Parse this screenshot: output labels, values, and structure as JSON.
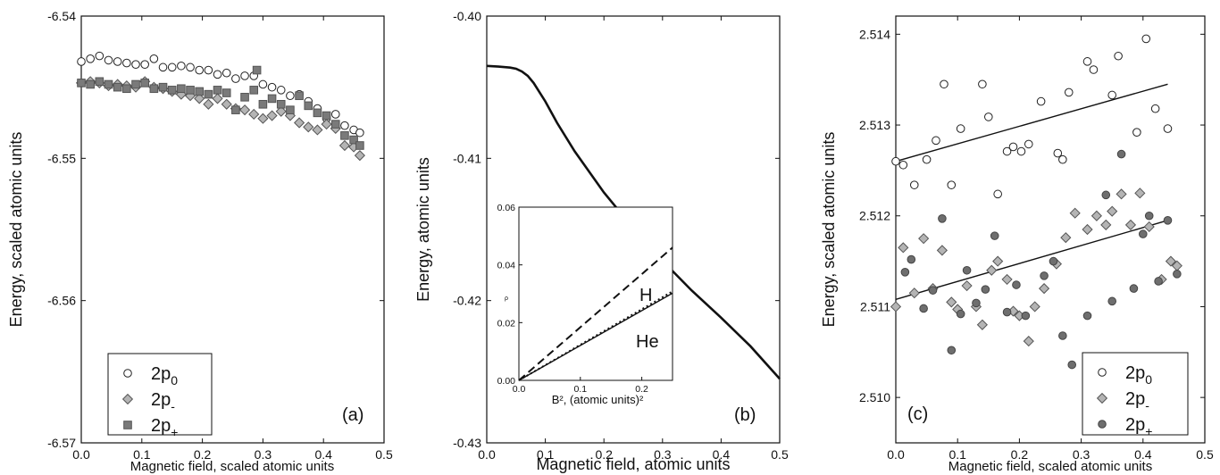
{
  "chart_data": [
    {
      "type": "scatter",
      "panel_label": "(a)",
      "xlabel": "Magnetic field, scaled atomic units",
      "ylabel": "Energy, scaled atomic units",
      "xlim": [
        0.0,
        0.5
      ],
      "ylim": [
        -6.57,
        -6.54
      ],
      "x_ticks": [
        "0.0",
        "0.1",
        "0.2",
        "0.3",
        "0.4",
        "0.5"
      ],
      "y_ticks": [
        "-6.54",
        "-6.55",
        "-6.56",
        "-6.57"
      ],
      "legend_position": "bottom-left",
      "series": [
        {
          "legend": {
            "base": "2p",
            "sub": "0"
          },
          "marker": "open-circle",
          "points": [
            [
              0.0,
              -6.5432
            ],
            [
              0.015,
              -6.543
            ],
            [
              0.03,
              -6.5428
            ],
            [
              0.045,
              -6.5431
            ],
            [
              0.06,
              -6.5432
            ],
            [
              0.075,
              -6.5433
            ],
            [
              0.09,
              -6.5434
            ],
            [
              0.105,
              -6.5434
            ],
            [
              0.12,
              -6.543
            ],
            [
              0.135,
              -6.5436
            ],
            [
              0.15,
              -6.5436
            ],
            [
              0.165,
              -6.5435
            ],
            [
              0.18,
              -6.5436
            ],
            [
              0.195,
              -6.5438
            ],
            [
              0.21,
              -6.5438
            ],
            [
              0.225,
              -6.5441
            ],
            [
              0.24,
              -6.544
            ],
            [
              0.255,
              -6.5444
            ],
            [
              0.27,
              -6.5442
            ],
            [
              0.285,
              -6.5442
            ],
            [
              0.3,
              -6.5448
            ],
            [
              0.315,
              -6.545
            ],
            [
              0.33,
              -6.5452
            ],
            [
              0.345,
              -6.5456
            ],
            [
              0.36,
              -6.5455
            ],
            [
              0.375,
              -6.546
            ],
            [
              0.39,
              -6.5465
            ],
            [
              0.405,
              -6.5472
            ],
            [
              0.42,
              -6.5469
            ],
            [
              0.435,
              -6.5477
            ],
            [
              0.45,
              -6.548
            ],
            [
              0.46,
              -6.5482
            ]
          ]
        },
        {
          "legend": {
            "base": "2p",
            "sub": "-"
          },
          "marker": "gray-diamond",
          "points": [
            [
              0.0,
              -6.5447
            ],
            [
              0.015,
              -6.5446
            ],
            [
              0.03,
              -6.5447
            ],
            [
              0.045,
              -6.5449
            ],
            [
              0.06,
              -6.5448
            ],
            [
              0.075,
              -6.5449
            ],
            [
              0.09,
              -6.545
            ],
            [
              0.105,
              -6.5446
            ],
            [
              0.12,
              -6.545
            ],
            [
              0.135,
              -6.5451
            ],
            [
              0.15,
              -6.5453
            ],
            [
              0.165,
              -6.5455
            ],
            [
              0.18,
              -6.5456
            ],
            [
              0.195,
              -6.5458
            ],
            [
              0.21,
              -6.5462
            ],
            [
              0.225,
              -6.5458
            ],
            [
              0.24,
              -6.5462
            ],
            [
              0.255,
              -6.5465
            ],
            [
              0.27,
              -6.5466
            ],
            [
              0.285,
              -6.5469
            ],
            [
              0.3,
              -6.5472
            ],
            [
              0.315,
              -6.547
            ],
            [
              0.33,
              -6.5467
            ],
            [
              0.345,
              -6.547
            ],
            [
              0.36,
              -6.5475
            ],
            [
              0.375,
              -6.5478
            ],
            [
              0.39,
              -6.548
            ],
            [
              0.405,
              -6.5476
            ],
            [
              0.42,
              -6.5479
            ],
            [
              0.435,
              -6.5491
            ],
            [
              0.45,
              -6.5492
            ],
            [
              0.46,
              -6.5498
            ]
          ]
        },
        {
          "legend": {
            "base": "2p",
            "sub": "+"
          },
          "marker": "dark-square",
          "points": [
            [
              0.0,
              -6.5447
            ],
            [
              0.015,
              -6.5448
            ],
            [
              0.03,
              -6.5446
            ],
            [
              0.045,
              -6.5448
            ],
            [
              0.06,
              -6.545
            ],
            [
              0.075,
              -6.5451
            ],
            [
              0.09,
              -6.5448
            ],
            [
              0.105,
              -6.5447
            ],
            [
              0.12,
              -6.5451
            ],
            [
              0.135,
              -6.545
            ],
            [
              0.15,
              -6.5452
            ],
            [
              0.165,
              -6.5451
            ],
            [
              0.18,
              -6.5452
            ],
            [
              0.195,
              -6.5453
            ],
            [
              0.21,
              -6.5455
            ],
            [
              0.225,
              -6.5452
            ],
            [
              0.24,
              -6.5454
            ],
            [
              0.255,
              -6.5466
            ],
            [
              0.27,
              -6.5457
            ],
            [
              0.285,
              -6.5452
            ],
            [
              0.29,
              -6.5438
            ],
            [
              0.3,
              -6.5462
            ],
            [
              0.315,
              -6.5458
            ],
            [
              0.33,
              -6.5462
            ],
            [
              0.345,
              -6.5466
            ],
            [
              0.36,
              -6.5456
            ],
            [
              0.375,
              -6.5463
            ],
            [
              0.39,
              -6.5468
            ],
            [
              0.405,
              -6.547
            ],
            [
              0.42,
              -6.5476
            ],
            [
              0.435,
              -6.5484
            ],
            [
              0.45,
              -6.5487
            ],
            [
              0.46,
              -6.5491
            ]
          ]
        }
      ]
    },
    {
      "type": "line",
      "panel_label": "(b)",
      "xlabel": "Magnetic field, atomic units",
      "ylabel": "Energy, atomic units",
      "xlim": [
        0.0,
        0.5
      ],
      "ylim": [
        -0.43,
        -0.4
      ],
      "x_ticks": [
        "0.0",
        "0.1",
        "0.2",
        "0.3",
        "0.4",
        "0.5"
      ],
      "y_ticks": [
        "-0.40",
        "-0.41",
        "-0.42",
        "-0.43"
      ],
      "series": [
        {
          "x": [
            0.0,
            0.02,
            0.04,
            0.05,
            0.06,
            0.07,
            0.08,
            0.1,
            0.12,
            0.15,
            0.2,
            0.25,
            0.3,
            0.35,
            0.4,
            0.45,
            0.5
          ],
          "y": [
            -0.4035,
            -0.40355,
            -0.40362,
            -0.4037,
            -0.4039,
            -0.4042,
            -0.4047,
            -0.406,
            -0.4075,
            -0.4095,
            -0.4124,
            -0.4149,
            -0.4172,
            -0.4193,
            -0.4212,
            -0.4232,
            -0.4255
          ]
        }
      ],
      "inset": {
        "type": "line",
        "xlabel": "B², (atomic units)²",
        "ylabel": "ρ",
        "xlim": [
          0.0,
          0.25
        ],
        "ylim": [
          0.0,
          0.06
        ],
        "x_ticks": [
          "0.0",
          "0.1",
          "0.2"
        ],
        "y_ticks": [
          "0.00",
          "0.02",
          "0.04",
          "0.06"
        ],
        "series": [
          {
            "name": "H",
            "style": "dashed",
            "x": [
              0.0,
              0.25
            ],
            "y": [
              0.0,
              0.046
            ]
          },
          {
            "name": "He",
            "style": "dotted",
            "x": [
              0.0,
              0.25
            ],
            "y": [
              0.0,
              0.0308
            ]
          },
          {
            "name": "He",
            "style": "solid",
            "x": [
              0.0,
              0.25
            ],
            "y": [
              0.0,
              0.0302
            ]
          }
        ],
        "labels": [
          "H",
          "He"
        ]
      }
    },
    {
      "type": "scatter",
      "panel_label": "(c)",
      "xlabel": "Magnetic field, scaled atomic units",
      "ylabel": "Energy, scaled atomic units",
      "xlim": [
        0.0,
        0.5
      ],
      "ylim": [
        2.5095,
        2.5142
      ],
      "x_ticks": [
        "0.0",
        "0.1",
        "0.2",
        "0.3",
        "0.4",
        "0.5"
      ],
      "y_ticks": [
        "2.514",
        "2.513",
        "2.512",
        "2.511",
        "2.510"
      ],
      "legend_position": "bottom-right",
      "fit_lines": [
        {
          "x": [
            0.0,
            0.44
          ],
          "y": [
            2.5126,
            2.51345
          ]
        },
        {
          "x": [
            0.0,
            0.44
          ],
          "y": [
            2.51108,
            2.51195
          ]
        }
      ],
      "series": [
        {
          "legend": {
            "base": "2p",
            "sub": "0"
          },
          "marker": "open-circle",
          "points": [
            [
              0.0,
              2.5126
            ],
            [
              0.012,
              2.51256
            ],
            [
              0.03,
              2.51234
            ],
            [
              0.05,
              2.51262
            ],
            [
              0.065,
              2.51283
            ],
            [
              0.078,
              2.51345
            ],
            [
              0.09,
              2.51234
            ],
            [
              0.105,
              2.51296
            ],
            [
              0.14,
              2.51345
            ],
            [
              0.15,
              2.51309
            ],
            [
              0.165,
              2.51224
            ],
            [
              0.18,
              2.51271
            ],
            [
              0.19,
              2.51276
            ],
            [
              0.203,
              2.51271
            ],
            [
              0.215,
              2.51279
            ],
            [
              0.235,
              2.51326
            ],
            [
              0.262,
              2.51269
            ],
            [
              0.27,
              2.51262
            ],
            [
              0.28,
              2.51336
            ],
            [
              0.31,
              2.5137
            ],
            [
              0.32,
              2.51361
            ],
            [
              0.35,
              2.51333
            ],
            [
              0.36,
              2.51376
            ],
            [
              0.39,
              2.51292
            ],
            [
              0.405,
              2.51395
            ],
            [
              0.42,
              2.51318
            ],
            [
              0.44,
              2.51296
            ]
          ]
        },
        {
          "legend": {
            "base": "2p",
            "sub": "-"
          },
          "marker": "gray-diamond",
          "points": [
            [
              0.0,
              2.511
            ],
            [
              0.012,
              2.51165
            ],
            [
              0.03,
              2.51115
            ],
            [
              0.045,
              2.51175
            ],
            [
              0.06,
              2.5112
            ],
            [
              0.075,
              2.51162
            ],
            [
              0.09,
              2.51105
            ],
            [
              0.1,
              2.51097
            ],
            [
              0.115,
              2.51123
            ],
            [
              0.13,
              2.511
            ],
            [
              0.14,
              2.5108
            ],
            [
              0.155,
              2.5114
            ],
            [
              0.165,
              2.5115
            ],
            [
              0.18,
              2.5113
            ],
            [
              0.19,
              2.51095
            ],
            [
              0.2,
              2.5109
            ],
            [
              0.215,
              2.51062
            ],
            [
              0.225,
              2.511
            ],
            [
              0.24,
              2.5112
            ],
            [
              0.26,
              2.51147
            ],
            [
              0.275,
              2.51176
            ],
            [
              0.29,
              2.51203
            ],
            [
              0.31,
              2.51185
            ],
            [
              0.325,
              2.512
            ],
            [
              0.34,
              2.5119
            ],
            [
              0.35,
              2.51205
            ],
            [
              0.365,
              2.51224
            ],
            [
              0.38,
              2.5119
            ],
            [
              0.395,
              2.51225
            ],
            [
              0.41,
              2.51188
            ],
            [
              0.43,
              2.5113
            ],
            [
              0.445,
              2.5115
            ],
            [
              0.455,
              2.51145
            ]
          ]
        },
        {
          "legend": {
            "base": "2p",
            "sub": "+"
          },
          "marker": "dark-circle",
          "points": [
            [
              0.015,
              2.51138
            ],
            [
              0.025,
              2.51152
            ],
            [
              0.045,
              2.51098
            ],
            [
              0.06,
              2.51118
            ],
            [
              0.075,
              2.51197
            ],
            [
              0.09,
              2.51052
            ],
            [
              0.105,
              2.51092
            ],
            [
              0.115,
              2.5114
            ],
            [
              0.13,
              2.51104
            ],
            [
              0.145,
              2.51119
            ],
            [
              0.16,
              2.51178
            ],
            [
              0.18,
              2.51094
            ],
            [
              0.195,
              2.51124
            ],
            [
              0.21,
              2.5109
            ],
            [
              0.24,
              2.51134
            ],
            [
              0.255,
              2.5115
            ],
            [
              0.27,
              2.51068
            ],
            [
              0.285,
              2.51036
            ],
            [
              0.31,
              2.5109
            ],
            [
              0.32,
              2.5101
            ],
            [
              0.34,
              2.51223
            ],
            [
              0.35,
              2.51106
            ],
            [
              0.365,
              2.51268
            ],
            [
              0.385,
              2.5112
            ],
            [
              0.4,
              2.5118
            ],
            [
              0.41,
              2.512
            ],
            [
              0.425,
              2.51128
            ],
            [
              0.44,
              2.51195
            ],
            [
              0.455,
              2.51136
            ]
          ]
        }
      ]
    }
  ]
}
